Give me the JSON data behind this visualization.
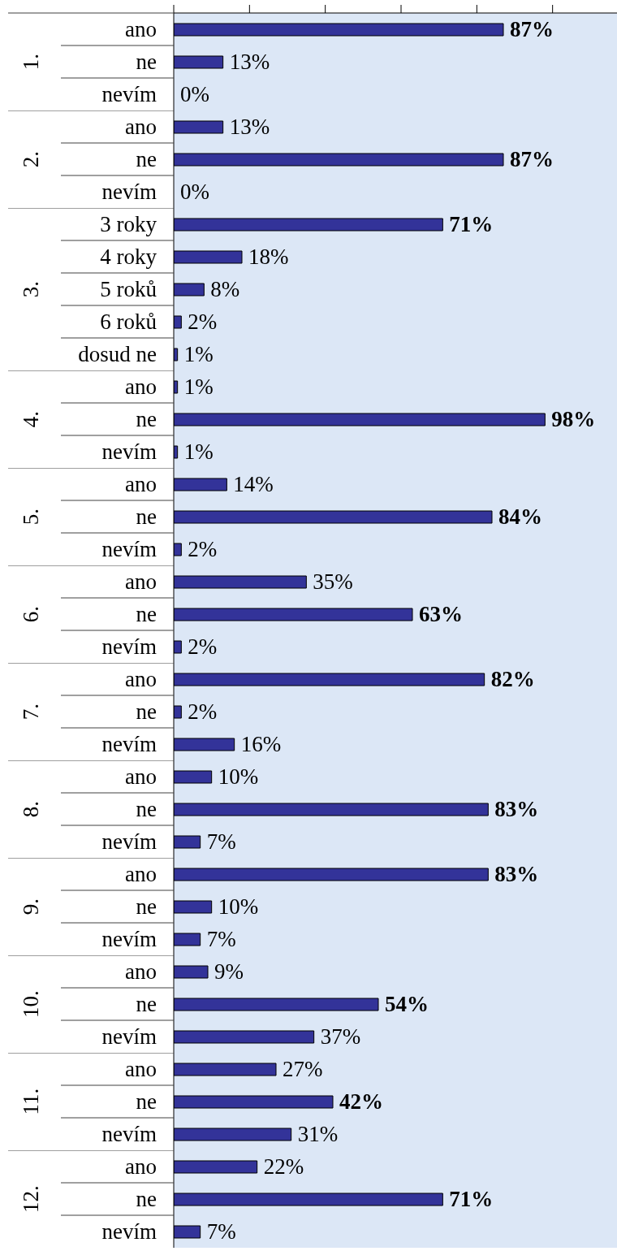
{
  "chart_data": [
    {
      "type": "bar",
      "orientation": "horizontal",
      "title": "1.",
      "categories": [
        "ano",
        "ne",
        "nevím"
      ],
      "values": [
        87,
        13,
        0
      ],
      "value_labels": [
        "87%",
        "13%",
        "0%"
      ],
      "color": "#333399",
      "xlim": [
        0,
        117
      ],
      "xticks": [
        {
          "value": 0,
          "label": null
        },
        {
          "value": 20,
          "label": null
        },
        {
          "value": 40,
          "label": null
        },
        {
          "value": 60,
          "label": null
        },
        {
          "value": 80,
          "label": null
        },
        {
          "value": 100,
          "label": null
        }
      ],
      "tick_labels": "y"
    },
    {
      "type": "bar",
      "orientation": "horizontal",
      "title": "2.",
      "categories": [
        "ano",
        "ne",
        "nevím"
      ],
      "values": [
        13,
        87,
        0
      ],
      "value_labels": [
        "13%",
        "87%",
        "0%"
      ],
      "color": "#333399",
      "xlim": [
        0,
        117
      ],
      "tick_labels": "y"
    },
    {
      "type": "bar",
      "orientation": "horizontal",
      "title": "3.",
      "categories": [
        "3 roky",
        "4 roky",
        "5 roků",
        "6 roků",
        "dosud ne"
      ],
      "values": [
        71,
        18,
        8,
        2,
        1
      ],
      "value_labels": [
        "71%",
        "18%",
        "8%",
        "2%",
        "1%"
      ],
      "color": "#333399",
      "xlim": [
        0,
        117
      ],
      "tick_labels": "y"
    },
    {
      "type": "bar",
      "orientation": "horizontal",
      "title": "4.",
      "categories": [
        "ano",
        "ne",
        "nevím"
      ],
      "values": [
        1,
        98,
        1
      ],
      "value_labels": [
        "1%",
        "98%",
        "1%"
      ],
      "color": "#333399",
      "xlim": [
        0,
        117
      ],
      "tick_labels": "y"
    },
    {
      "type": "bar",
      "orientation": "horizontal",
      "title": "5.",
      "categories": [
        "ano",
        "ne",
        "nevím"
      ],
      "values": [
        14,
        84,
        2
      ],
      "value_labels": [
        "14%",
        "84%",
        "2%"
      ],
      "color": "#333399",
      "xlim": [
        0,
        117
      ],
      "tick_labels": "y"
    },
    {
      "type": "bar",
      "orientation": "horizontal",
      "title": "6.",
      "categories": [
        "ano",
        "ne",
        "nevím"
      ],
      "values": [
        35,
        63,
        2
      ],
      "value_labels": [
        "35%",
        "63%",
        "2%"
      ],
      "color": "#333399",
      "xlim": [
        0,
        117
      ],
      "tick_labels": "y"
    },
    {
      "type": "bar",
      "orientation": "horizontal",
      "title": "7.",
      "categories": [
        "ano",
        "ne",
        "nevím"
      ],
      "values": [
        82,
        2,
        16
      ],
      "value_labels": [
        "82%",
        "2%",
        "16%"
      ],
      "color": "#333399",
      "xlim": [
        0,
        117
      ],
      "tick_labels": "y"
    },
    {
      "type": "bar",
      "orientation": "horizontal",
      "title": "8.",
      "categories": [
        "ano",
        "ne",
        "nevím"
      ],
      "values": [
        10,
        83,
        7
      ],
      "value_labels": [
        "10%",
        "83%",
        "7%"
      ],
      "color": "#333399",
      "xlim": [
        0,
        117
      ],
      "tick_labels": "y"
    },
    {
      "type": "bar",
      "orientation": "horizontal",
      "title": "9.",
      "categories": [
        "ano",
        "ne",
        "nevím"
      ],
      "values": [
        83,
        10,
        7
      ],
      "value_labels": [
        "83%",
        "10%",
        "7%"
      ],
      "color": "#333399",
      "xlim": [
        0,
        117
      ],
      "tick_labels": "y"
    },
    {
      "type": "bar",
      "orientation": "horizontal",
      "title": "10.",
      "categories": [
        "ano",
        "ne",
        "nevím"
      ],
      "values": [
        9,
        54,
        37
      ],
      "value_labels": [
        "9%",
        "54%",
        "37%"
      ],
      "color": "#333399",
      "xlim": [
        0,
        117
      ],
      "tick_labels": "y"
    },
    {
      "type": "bar",
      "orientation": "horizontal",
      "title": "11.",
      "categories": [
        "ano",
        "ne",
        "nevím"
      ],
      "values": [
        27,
        42,
        31
      ],
      "value_labels": [
        "27%",
        "42%",
        "31%"
      ],
      "color": "#333399",
      "xlim": [
        0,
        117
      ],
      "tick_labels": "y"
    },
    {
      "type": "bar",
      "orientation": "horizontal",
      "title": "12.",
      "categories": [
        "ano",
        "ne",
        "nevím"
      ],
      "values": [
        22,
        71,
        7
      ],
      "value_labels": [
        "22%",
        "71%",
        "7%"
      ],
      "color": "#333399",
      "xlim": [
        0,
        117
      ],
      "tick_labels": "y"
    }
  ]
}
